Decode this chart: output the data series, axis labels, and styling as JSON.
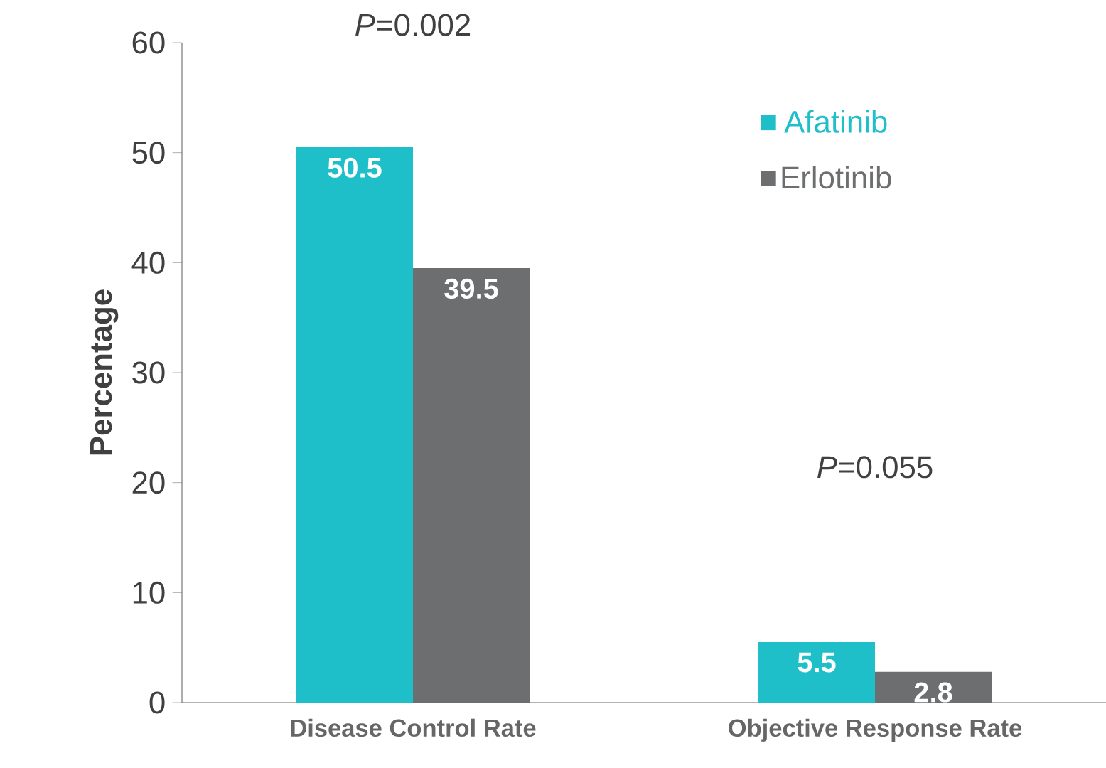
{
  "chart_data": {
    "type": "bar",
    "categories": [
      "Disease Control Rate",
      "Objective Response Rate"
    ],
    "ylabel": "Percentage",
    "series": [
      {
        "name": "Afatinib",
        "color": "#1fbfca",
        "values": [
          50.5,
          5.5
        ]
      },
      {
        "name": "Erlotinib",
        "color": "#6d6e70",
        "values": [
          39.5,
          2.8
        ]
      }
    ],
    "ylim": [
      0,
      60
    ],
    "yticks": [
      0,
      10,
      20,
      30,
      40,
      50,
      60
    ],
    "grid": false,
    "legend": "top right",
    "data_labels": true,
    "annotations": [
      "*P*=0.002",
      "*P*=0.055"
    ]
  }
}
